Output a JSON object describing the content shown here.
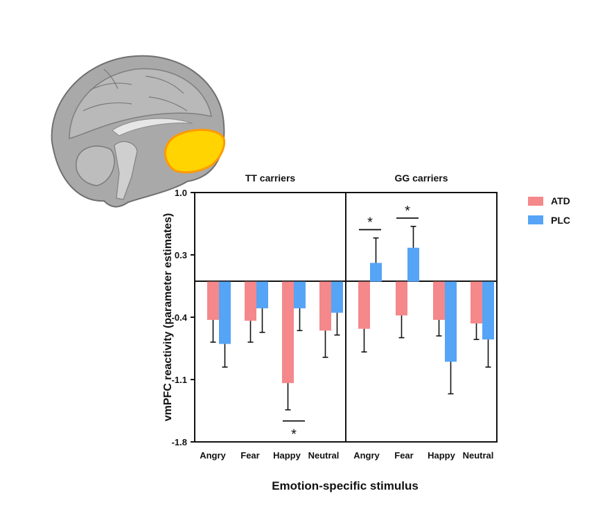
{
  "chart_data": {
    "type": "bar",
    "panels": [
      {
        "title": "TT carriers",
        "categories": [
          "Angry",
          "Fear",
          "Happy",
          "Neutral"
        ],
        "series": [
          {
            "name": "ATD",
            "values": [
              -0.43,
              -0.44,
              -1.14,
              -0.55
            ],
            "errors": [
              0.25,
              0.24,
              0.3,
              0.3
            ]
          },
          {
            "name": "PLC",
            "values": [
              -0.7,
              -0.3,
              -0.3,
              -0.35
            ],
            "errors": [
              0.26,
              0.27,
              0.25,
              0.25
            ]
          }
        ],
        "significant": [
          false,
          false,
          true,
          false
        ]
      },
      {
        "title": "GG carriers",
        "categories": [
          "Angry",
          "Fear",
          "Happy",
          "Neutral"
        ],
        "series": [
          {
            "name": "ATD",
            "values": [
              -0.53,
              -0.38,
              -0.43,
              -0.47
            ],
            "errors": [
              0.26,
              0.25,
              0.18,
              0.18
            ]
          },
          {
            "name": "PLC",
            "values": [
              0.21,
              0.38,
              -0.9,
              -0.65
            ],
            "errors": [
              0.28,
              0.24,
              0.36,
              0.31
            ]
          }
        ],
        "significant": [
          true,
          true,
          false,
          false
        ]
      }
    ],
    "ylabel": "vmPFC reactivity (parameter estimates)",
    "xlabel": "Emotion-specific stimulus",
    "ylim": [
      -1.8,
      1.0
    ],
    "yticks": [
      "1.0",
      "0.3",
      "-0.4",
      "-1.1",
      "-1.8"
    ],
    "significance_marker": "*",
    "legend_placement": "right",
    "colors": {
      "ATD": "#f4888a",
      "PLC": "#55a4f6",
      "axis": "#111111"
    }
  },
  "brain_image": {
    "colors": {
      "gray": "#a9a9a9",
      "activation": "#ffd400",
      "activation_edge": "#ff9a00"
    }
  }
}
